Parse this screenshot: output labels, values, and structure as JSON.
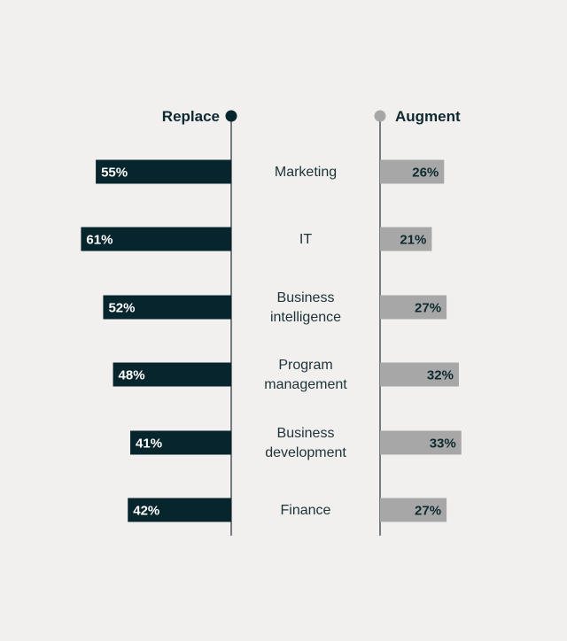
{
  "chart_data": {
    "type": "bar",
    "layout": "diverging",
    "series": [
      {
        "name": "Replace",
        "values": [
          55,
          61,
          52,
          48,
          41,
          42
        ],
        "labels": [
          "55%",
          "61%",
          "52%",
          "48%",
          "41%",
          "42%"
        ],
        "color": "#07252c"
      },
      {
        "name": "Augment",
        "values": [
          26,
          21,
          27,
          32,
          33,
          27
        ],
        "labels": [
          "26%",
          "21%",
          "27%",
          "32%",
          "33%",
          "27%"
        ],
        "color": "#a7a7a7"
      }
    ],
    "categories": [
      [
        "Marketing"
      ],
      [
        "IT"
      ],
      [
        "Business",
        "intelligence"
      ],
      [
        "Program",
        "management"
      ],
      [
        "Business",
        "development"
      ],
      [
        "Finance"
      ]
    ],
    "legend": "top",
    "grid": false
  }
}
